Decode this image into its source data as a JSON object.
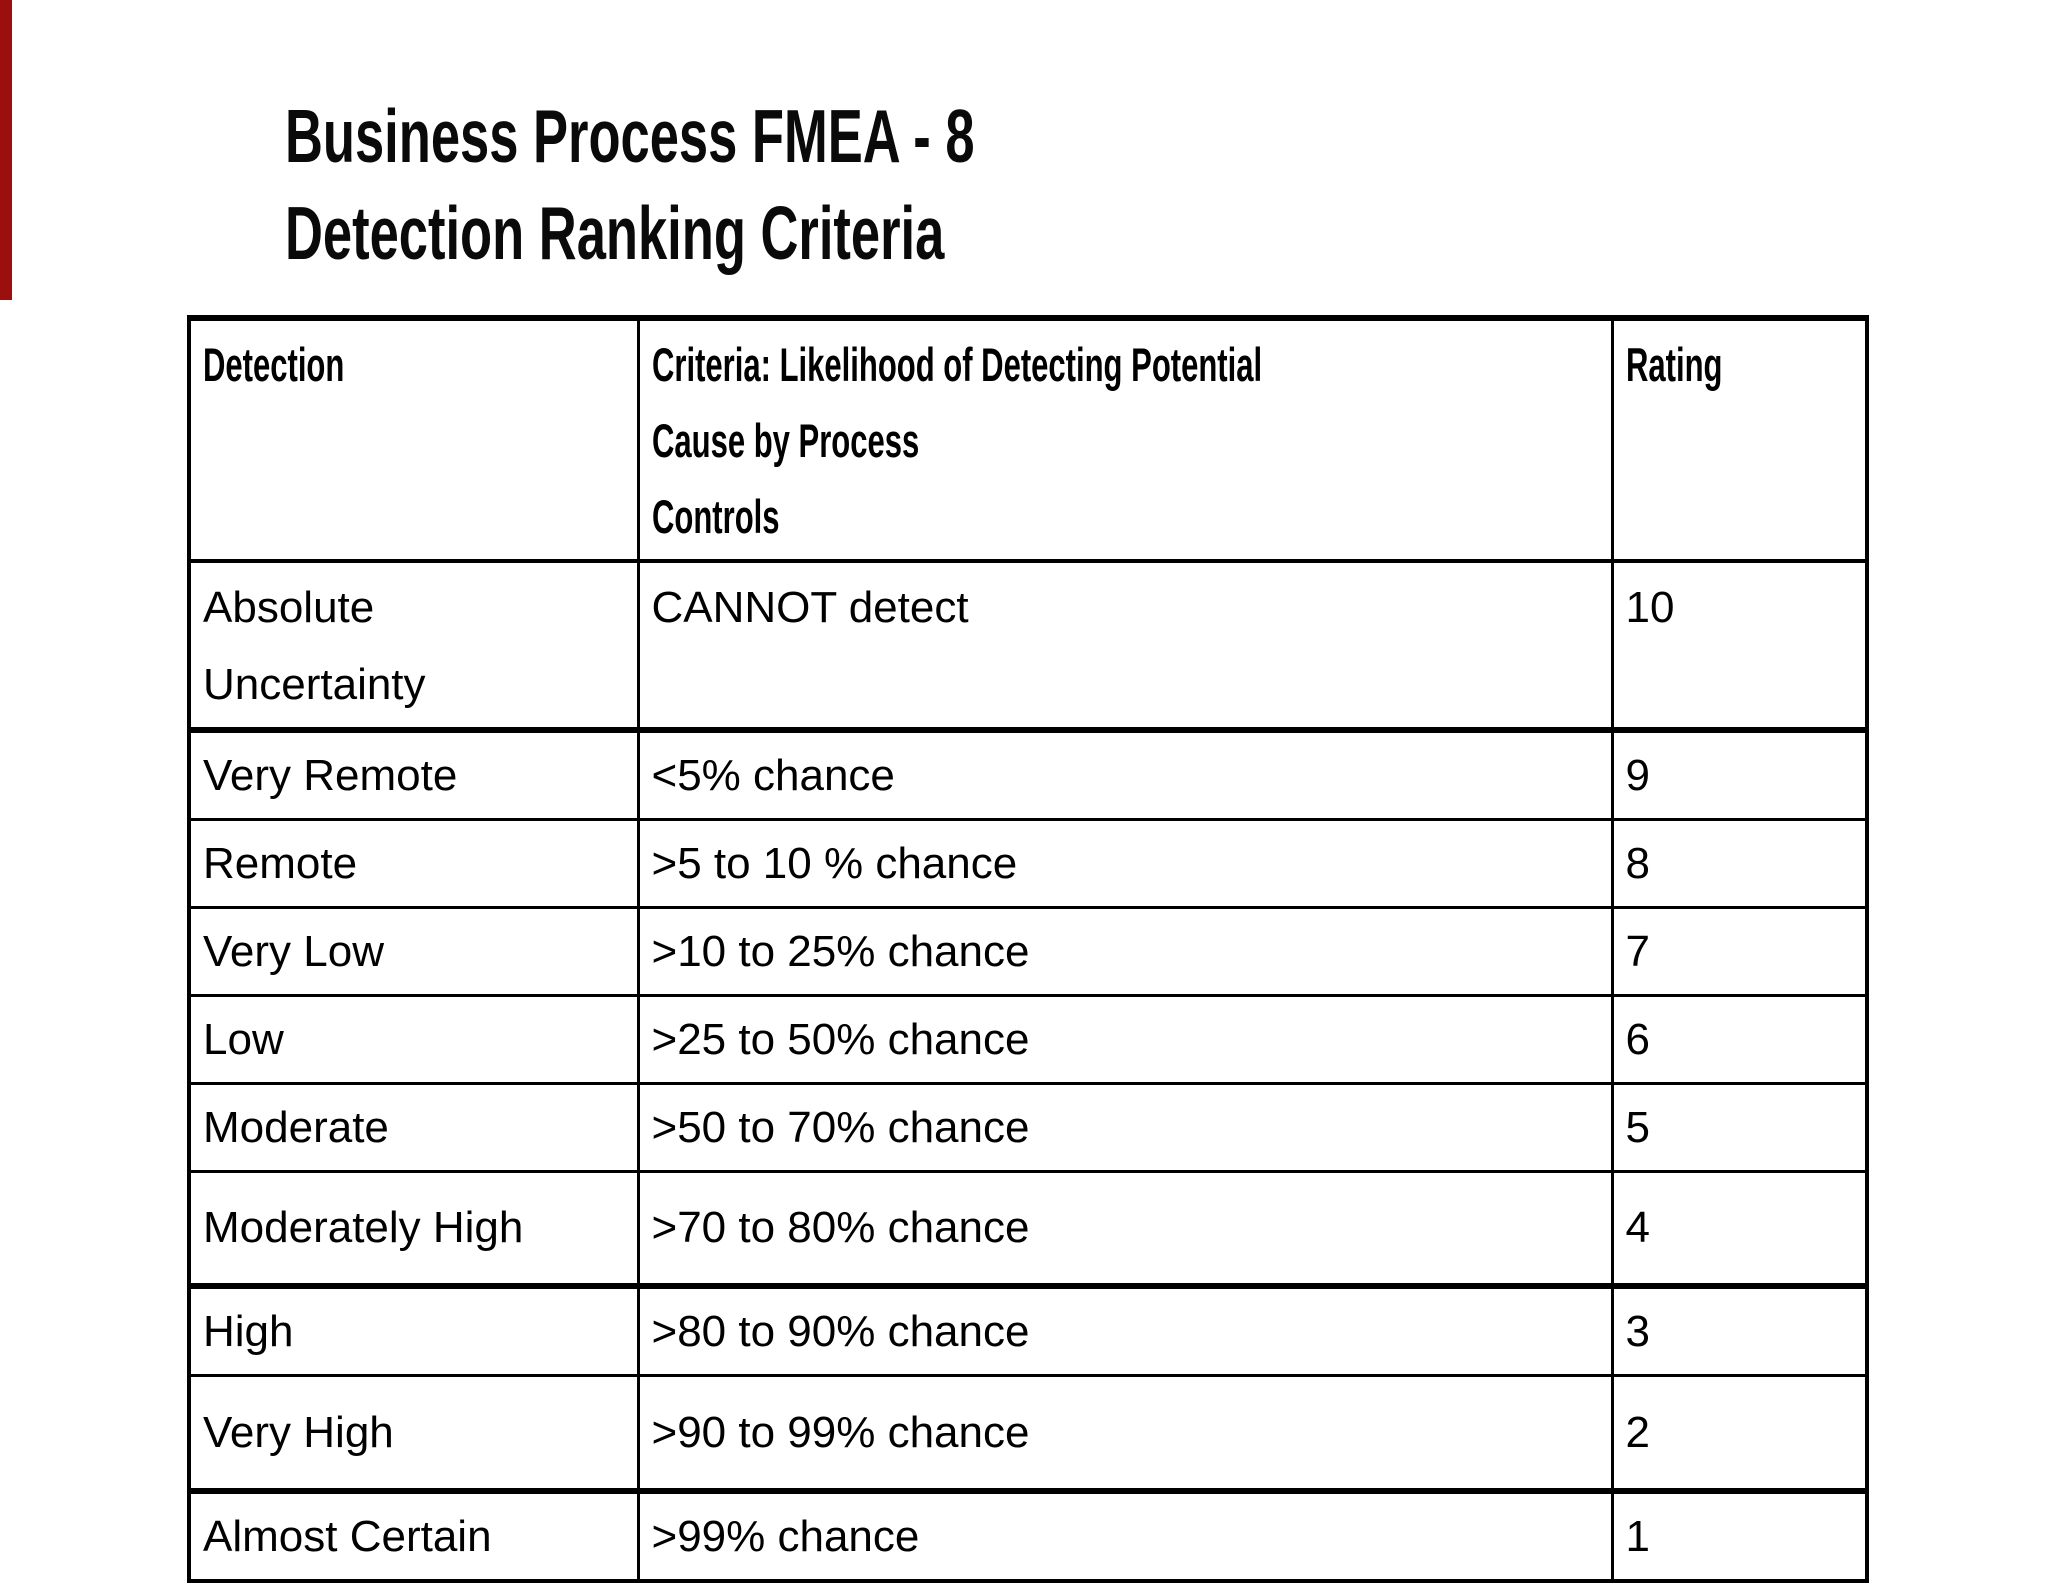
{
  "accent_bar": {
    "color": "#9b0f0f"
  },
  "title": {
    "line1": "Business Process FMEA - 8",
    "line2": "Detection Ranking Criteria"
  },
  "table": {
    "headers": [
      {
        "lines": [
          "Detection"
        ]
      },
      {
        "lines": [
          "Criteria: Likelihood of Detecting Potential",
          "Cause by Process",
          "Controls"
        ]
      },
      {
        "lines": [
          "Rating"
        ]
      }
    ],
    "rows": [
      {
        "detection": [
          "Absolute",
          "Uncertainty"
        ],
        "criteria": "CANNOT detect",
        "rating": "10"
      },
      {
        "detection": "Very Remote",
        "criteria": "<5% chance",
        "rating": "9"
      },
      {
        "detection": "Remote",
        "criteria": ">5 to 10 % chance",
        "rating": "8"
      },
      {
        "detection": "Very Low",
        "criteria": ">10 to 25% chance",
        "rating": "7"
      },
      {
        "detection": "Low",
        "criteria": ">25 to 50% chance",
        "rating": "6"
      },
      {
        "detection": "Moderate",
        "criteria": ">50 to 70% chance",
        "rating": "5"
      },
      {
        "detection": "Moderately High",
        "criteria": ">70 to 80% chance",
        "rating": "4"
      },
      {
        "detection": "High",
        "criteria": ">80 to 90% chance",
        "rating": "3"
      },
      {
        "detection": "Very High",
        "criteria": ">90 to 99% chance",
        "rating": "2"
      },
      {
        "detection": "Almost Certain",
        "criteria": ">99% chance",
        "rating": "1"
      }
    ]
  }
}
